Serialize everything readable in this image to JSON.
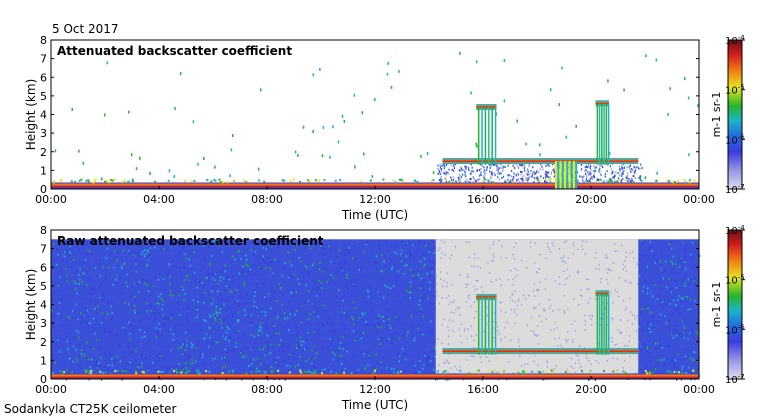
{
  "date_label": "5 Oct 2017",
  "footer_label": "Sodankyla CT25K ceilometer",
  "colors": {
    "colormap": [
      "#dcdcf0",
      "#9a9ae6",
      "#3b3be0",
      "#1f6fe0",
      "#1cb4c8",
      "#28b428",
      "#e6e61e",
      "#f07814",
      "#d21e1e",
      "#6e0f0f"
    ],
    "panel_background": "#ffffff",
    "missing_data_gray": "#dcdcdc"
  },
  "chart_data": [
    {
      "type": "heatmap",
      "title": "Attenuated backscatter coefficient",
      "xlabel": "Time (UTC)",
      "ylabel": "Height (km)",
      "xlim": [
        "00:00",
        "00:00"
      ],
      "ylim": [
        0,
        8
      ],
      "x_ticks": [
        "00:00",
        "04:00",
        "08:00",
        "12:00",
        "16:00",
        "20:00",
        "00:00"
      ],
      "y_ticks": [
        "0",
        "1",
        "2",
        "3",
        "4",
        "5",
        "6",
        "7",
        "8"
      ],
      "colorbar": {
        "label": "m-1 sr-1",
        "scale": "log",
        "range": [
          1e-07,
          0.0001
        ],
        "ticks": [
          "10-7",
          "10-6",
          "10-5",
          "10-4"
        ]
      },
      "features": [
        {
          "kind": "surface-layer",
          "time_start": "00:00",
          "time_end": "24:00",
          "height_km": [
            0.0,
            0.35
          ]
        },
        {
          "kind": "cloud-layer",
          "time_start": "14:30",
          "time_end": "21:45",
          "height_km": 1.5
        },
        {
          "kind": "cloud-layer",
          "time_start": "15:45",
          "time_end": "16:30",
          "height_km": 4.4
        },
        {
          "kind": "cloud-layer",
          "time_start": "20:10",
          "time_end": "20:40",
          "height_km": 4.6
        },
        {
          "kind": "precipitation",
          "time_start": "18:40",
          "time_end": "19:30",
          "height_km": [
            0.0,
            1.5
          ]
        }
      ]
    },
    {
      "type": "heatmap",
      "title": "Raw attenuated backscatter coefficient",
      "xlabel": "Time (UTC)",
      "ylabel": "Height (km)",
      "xlim": [
        "00:00",
        "00:00"
      ],
      "ylim": [
        0,
        8
      ],
      "x_ticks": [
        "00:00",
        "04:00",
        "08:00",
        "12:00",
        "16:00",
        "20:00",
        "00:00"
      ],
      "y_ticks": [
        "0",
        "1",
        "2",
        "3",
        "4",
        "5",
        "6",
        "7",
        "8"
      ],
      "colorbar": {
        "label": "m-1 sr-1",
        "scale": "log",
        "range": [
          1e-07,
          0.0001
        ],
        "ticks": [
          "10-7",
          "10-6",
          "10-5",
          "10-4"
        ]
      },
      "data_top_km": 7.5,
      "features": [
        {
          "kind": "noise-field",
          "time_start": "00:00",
          "time_end": "24:00",
          "height_km": [
            0.0,
            7.5
          ]
        },
        {
          "kind": "low-noise-region",
          "time_start": "14:15",
          "time_end": "21:45"
        },
        {
          "kind": "surface-layer",
          "time_start": "00:00",
          "time_end": "24:00",
          "height_km": [
            0.0,
            0.3
          ]
        },
        {
          "kind": "cloud-layer",
          "time_start": "14:30",
          "time_end": "21:45",
          "height_km": 1.5
        },
        {
          "kind": "cloud-layer",
          "time_start": "15:45",
          "time_end": "16:30",
          "height_km": 4.4
        },
        {
          "kind": "cloud-layer",
          "time_start": "20:10",
          "time_end": "20:40",
          "height_km": 4.6
        }
      ]
    }
  ]
}
